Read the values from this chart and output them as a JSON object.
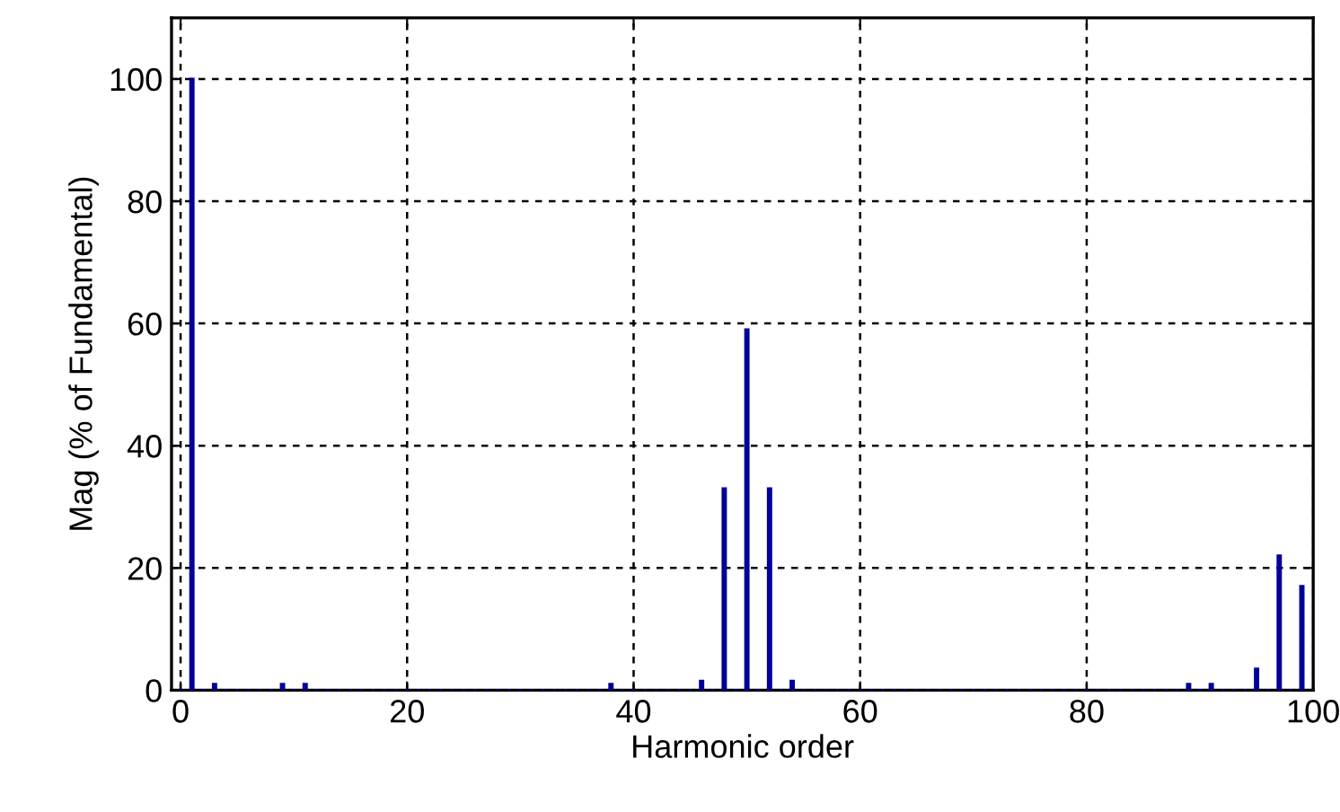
{
  "chart_data": {
    "type": "bar",
    "xlabel": "Harmonic order",
    "ylabel": "Mag (% of Fundamental)",
    "x": [
      0,
      1,
      2,
      3,
      4,
      5,
      6,
      7,
      8,
      9,
      10,
      11,
      12,
      13,
      14,
      15,
      16,
      17,
      18,
      19,
      20,
      21,
      22,
      23,
      24,
      25,
      26,
      27,
      28,
      29,
      30,
      31,
      32,
      33,
      34,
      35,
      36,
      37,
      38,
      39,
      40,
      41,
      42,
      43,
      44,
      45,
      46,
      47,
      48,
      49,
      50,
      51,
      52,
      53,
      54,
      55,
      56,
      57,
      58,
      59,
      60,
      61,
      62,
      63,
      64,
      65,
      66,
      67,
      68,
      69,
      70,
      71,
      72,
      73,
      74,
      75,
      76,
      77,
      78,
      79,
      80,
      81,
      82,
      83,
      84,
      85,
      86,
      87,
      88,
      89,
      90,
      91,
      92,
      93,
      94,
      95,
      96,
      97,
      98,
      99,
      100
    ],
    "values": [
      0,
      100,
      0,
      1,
      0,
      0,
      0,
      0,
      0,
      1,
      0,
      1,
      0,
      0,
      0,
      0,
      0,
      0,
      0,
      0,
      0,
      0,
      0,
      0,
      0,
      0,
      0,
      0,
      0,
      0,
      0,
      0,
      0,
      0,
      0,
      0,
      0,
      0,
      1,
      0,
      0,
      0,
      0,
      0,
      0,
      0,
      1.5,
      0,
      33,
      0,
      59,
      0,
      33,
      0,
      1.5,
      0,
      0,
      0,
      0,
      0,
      0,
      0,
      0,
      0,
      0,
      0,
      0,
      0,
      0,
      0,
      0,
      0,
      0,
      0,
      0,
      0,
      0,
      0,
      0,
      0,
      0,
      0,
      0,
      0,
      0,
      0,
      0,
      0,
      0,
      1,
      0,
      1,
      0,
      0,
      0,
      3.5,
      0,
      22,
      0,
      17,
      0
    ],
    "color": "#000099",
    "xlim": [
      -0.8,
      100
    ],
    "xticks": [
      0,
      20,
      40,
      60,
      80,
      100
    ],
    "ylim": [
      0,
      110
    ],
    "yticks": [
      0,
      20,
      40,
      60,
      80,
      100
    ],
    "grid": true
  }
}
